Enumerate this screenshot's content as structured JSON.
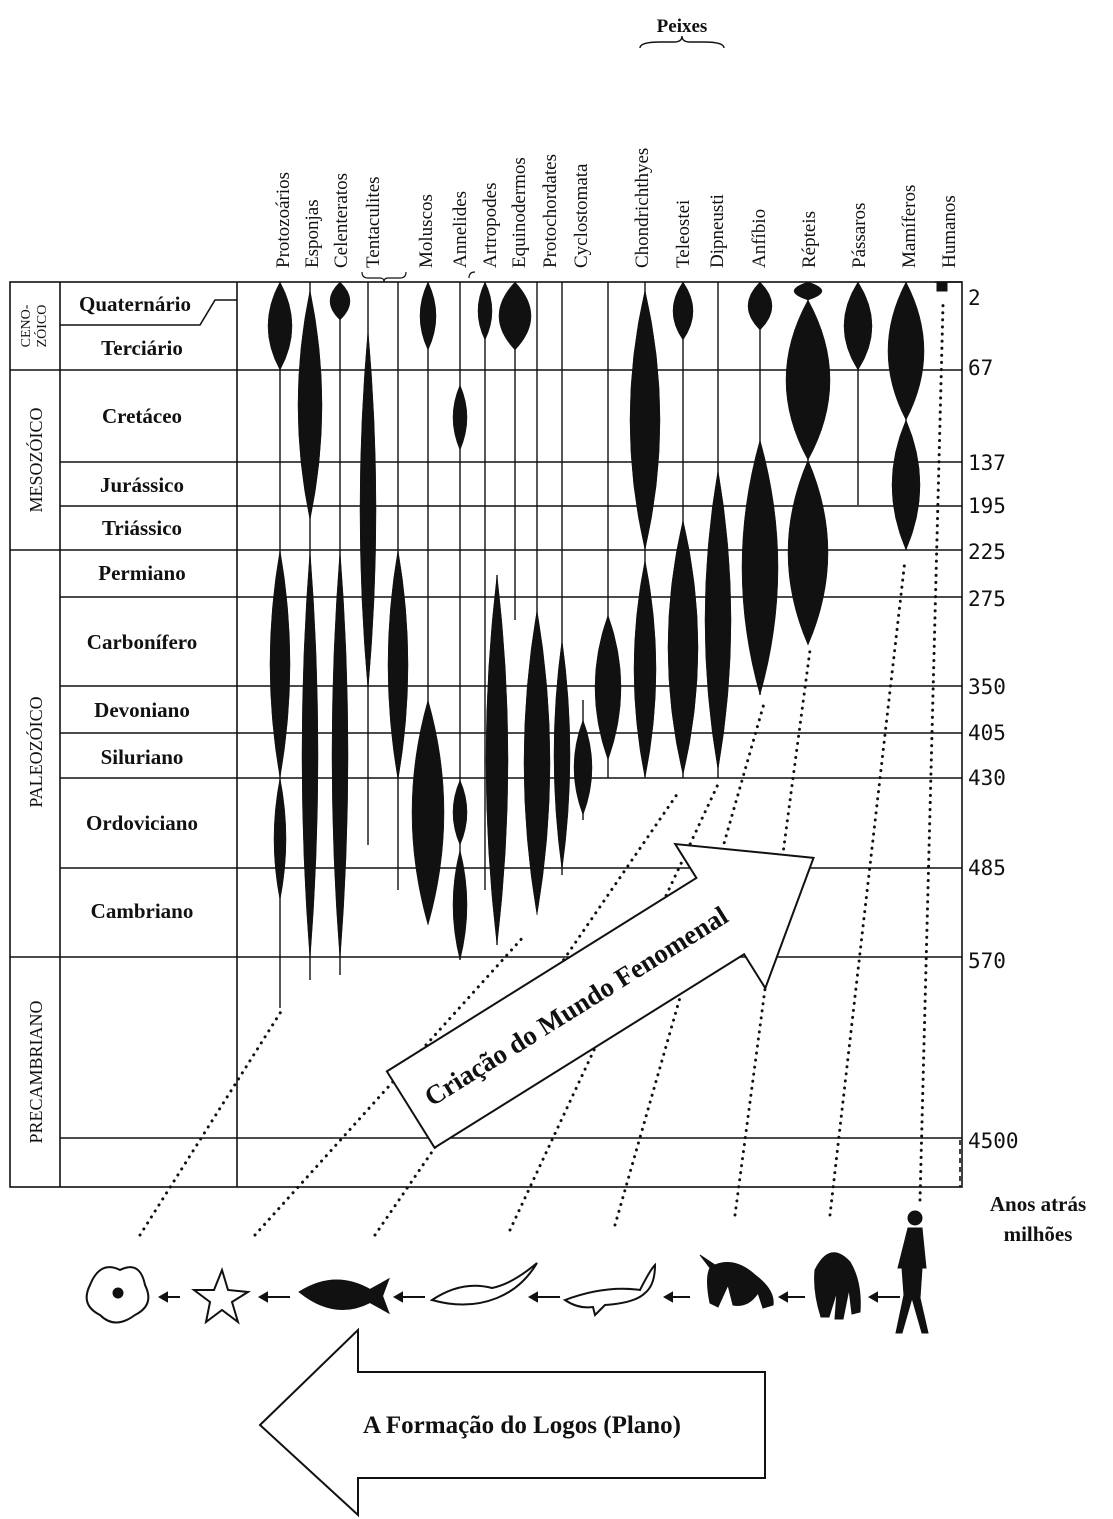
{
  "header": {
    "group_label": "Peixes"
  },
  "columns": [
    "Protozoários",
    "Esponjas",
    "Celenteratos",
    "Tentaculites",
    "Moluscos",
    "Annelides",
    "Artropodes",
    "Equinodermos",
    "Protochordates",
    "Cyclostomata",
    "Chondrichthyes",
    "Teleostei",
    "Dipneusti",
    "Anfíbio",
    "Répteis",
    "Pássaros",
    "Mamíferos",
    "Humanos"
  ],
  "eras": [
    {
      "lines": [
        "CENO-",
        "ZÓICO"
      ]
    },
    {
      "lines": [
        "MESOZÓICO"
      ]
    },
    {
      "lines": [
        "PALEOZÓICO"
      ]
    },
    {
      "lines": [
        "PRECAMBRIANO"
      ]
    }
  ],
  "periods": [
    "Quaternário",
    "Terciário",
    "Cretáceo",
    "Jurássico",
    "Triássico",
    "Permiano",
    "Carbonífero",
    "Devoniano",
    "Siluriano",
    "Ordoviciano",
    "Cambriano"
  ],
  "ages": [
    2,
    67,
    137,
    195,
    225,
    275,
    350,
    405,
    430,
    485,
    570,
    4500
  ],
  "age_caption": [
    "Anos atrás",
    "milhões"
  ],
  "arrows": {
    "creation": "Criação do Mundo Fenomenal",
    "logos": "A Formação do Logos (Plano)"
  }
}
